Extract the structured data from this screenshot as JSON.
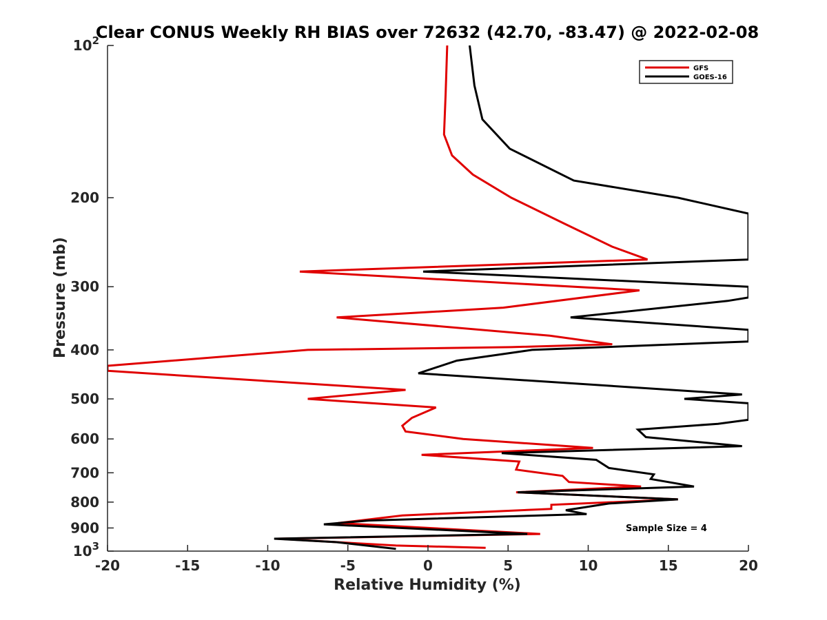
{
  "chart_data": {
    "type": "line",
    "title": "Clear CONUS Weekly RH BIAS over 72632 (42.70, -83.47) @ 2022-02-08",
    "xlabel": "Relative Humidity (%)",
    "ylabel": "Pressure (mb)",
    "xlim": [
      -20,
      20
    ],
    "ylim": [
      100,
      1000
    ],
    "yscale": "log",
    "y_reversed": true,
    "grid": false,
    "legend_position": "top-right",
    "x_ticks": [
      "-20",
      "-15",
      "-10",
      "-5",
      "0",
      "5",
      "10",
      "15",
      "20"
    ],
    "x_tick_values": [
      -20,
      -15,
      -10,
      -5,
      0,
      5,
      10,
      15,
      20
    ],
    "y_ticks": [
      {
        "value": 100,
        "base": "10",
        "exp": "2"
      },
      {
        "value": 200,
        "label": "200"
      },
      {
        "value": 300,
        "label": "300"
      },
      {
        "value": 400,
        "label": "400"
      },
      {
        "value": 500,
        "label": "500"
      },
      {
        "value": 600,
        "label": "600"
      },
      {
        "value": 700,
        "label": "700"
      },
      {
        "value": 800,
        "label": "800"
      },
      {
        "value": 900,
        "label": "900"
      },
      {
        "value": 1000,
        "base": "10",
        "exp": "3"
      }
    ],
    "annotation": "Sample Size = 4",
    "series": [
      {
        "name": "GFS",
        "color": "#e00000",
        "points": [
          [
            1.2,
            100
          ],
          [
            1.1,
            125
          ],
          [
            1.0,
            150
          ],
          [
            1.5,
            165
          ],
          [
            2.8,
            180
          ],
          [
            5.2,
            200
          ],
          [
            8.5,
            225
          ],
          [
            11.5,
            250
          ],
          [
            13.7,
            265
          ],
          [
            -8.0,
            280
          ],
          [
            13.2,
            305
          ],
          [
            4.7,
            330
          ],
          [
            -5.7,
            345
          ],
          [
            7.6,
            375
          ],
          [
            11.5,
            390
          ],
          [
            5.2,
            395
          ],
          [
            -7.5,
            400
          ],
          [
            -20.0,
            430
          ],
          [
            -20.0,
            440
          ],
          [
            -1.4,
            480
          ],
          [
            -7.5,
            500
          ],
          [
            0.5,
            520
          ],
          [
            -1.0,
            545
          ],
          [
            -1.6,
            565
          ],
          [
            -1.4,
            580
          ],
          [
            2.2,
            600
          ],
          [
            10.3,
            625
          ],
          [
            -0.4,
            645
          ],
          [
            5.7,
            665
          ],
          [
            5.5,
            690
          ],
          [
            8.4,
            710
          ],
          [
            8.8,
            730
          ],
          [
            13.3,
            745
          ],
          [
            5.5,
            765
          ],
          [
            15.6,
            790
          ],
          [
            7.7,
            810
          ],
          [
            7.7,
            825
          ],
          [
            -1.6,
            850
          ],
          [
            -5.6,
            880
          ],
          [
            7.0,
            925
          ],
          [
            -9.4,
            945
          ],
          [
            -2.0,
            975
          ],
          [
            3.6,
            985
          ]
        ]
      },
      {
        "name": "GOES-16",
        "color": "#000000",
        "points": [
          [
            2.6,
            100
          ],
          [
            2.9,
            120
          ],
          [
            3.4,
            140
          ],
          [
            5.1,
            160
          ],
          [
            9.1,
            185
          ],
          [
            15.6,
            200
          ],
          [
            20.0,
            215
          ],
          [
            20.0,
            265
          ],
          [
            -0.3,
            280
          ],
          [
            20.0,
            300
          ],
          [
            20.0,
            315
          ],
          [
            18.7,
            320
          ],
          [
            8.9,
            345
          ],
          [
            20.0,
            365
          ],
          [
            20.0,
            385
          ],
          [
            6.5,
            400
          ],
          [
            1.8,
            420
          ],
          [
            -0.6,
            445
          ],
          [
            19.6,
            490
          ],
          [
            16.0,
            500
          ],
          [
            20.0,
            510
          ],
          [
            20.0,
            550
          ],
          [
            18.1,
            560
          ],
          [
            13.1,
            575
          ],
          [
            13.6,
            595
          ],
          [
            19.6,
            620
          ],
          [
            4.6,
            640
          ],
          [
            10.5,
            660
          ],
          [
            11.3,
            685
          ],
          [
            14.1,
            705
          ],
          [
            13.9,
            720
          ],
          [
            16.6,
            745
          ],
          [
            5.6,
            765
          ],
          [
            15.6,
            790
          ],
          [
            11.3,
            805
          ],
          [
            8.6,
            830
          ],
          [
            9.9,
            845
          ],
          [
            -3.7,
            870
          ],
          [
            -6.5,
            885
          ],
          [
            6.2,
            925
          ],
          [
            -9.6,
            945
          ],
          [
            -5.7,
            960
          ],
          [
            -2.0,
            990
          ]
        ]
      }
    ]
  }
}
